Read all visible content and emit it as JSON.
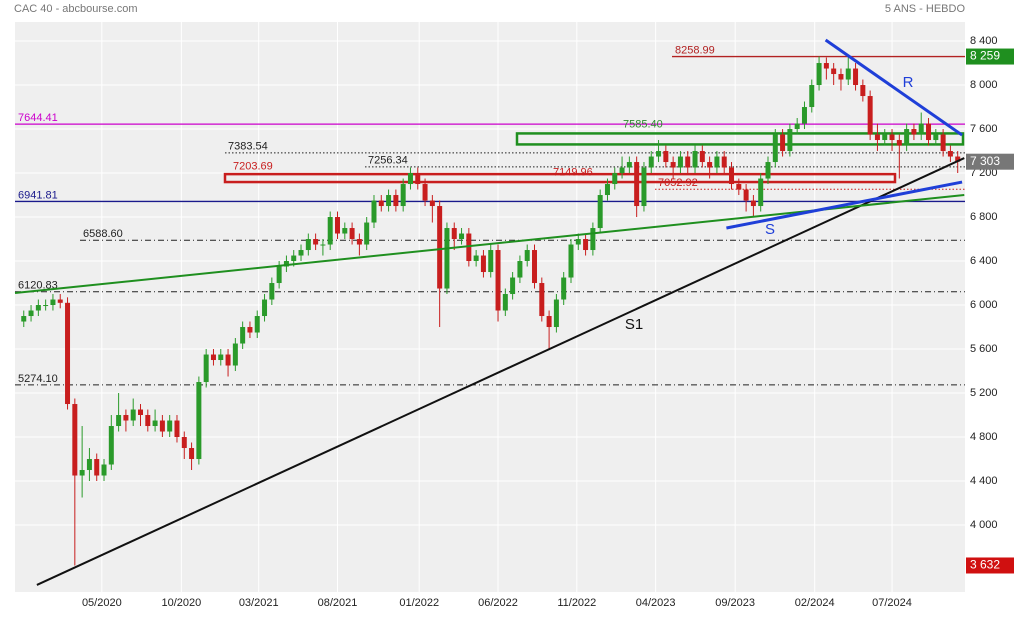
{
  "chart_data": {
    "type": "candlestick",
    "title": "CAC 40 - abcbourse.com",
    "subtitle": "5 ANS - HEBDO",
    "up_color": "#2a9a2a",
    "down_color": "#c81e1e",
    "open": [
      5850,
      5900,
      5950,
      6000,
      6000,
      6050,
      6020,
      5100,
      4450,
      4500,
      4600,
      4450,
      4550,
      4900,
      5000,
      4950,
      5050,
      5000,
      4900,
      4950,
      4850,
      4950,
      4800,
      4700,
      4600,
      5300,
      5550,
      5500,
      5550,
      5450,
      5650,
      5800,
      5750,
      5900,
      6050,
      6200,
      6350,
      6400,
      6450,
      6500,
      6600,
      6550,
      6550,
      6800,
      6650,
      6700,
      6600,
      6550,
      6750,
      6950,
      6900,
      7000,
      6900,
      7100,
      7200,
      7100,
      6950,
      6900,
      6150,
      6700,
      6600,
      6650,
      6400,
      6450,
      6300,
      6500,
      5950,
      6100,
      6250,
      6400,
      6500,
      6200,
      5900,
      5800,
      6050,
      6250,
      6550,
      6600,
      6500,
      6700,
      7000,
      7100,
      7200,
      7250,
      7300,
      6900,
      7250,
      7350,
      7400,
      7300,
      7250,
      7350,
      7250,
      7400,
      7300,
      7250,
      7350,
      7250,
      7100,
      7050,
      6950,
      6900,
      7150,
      7300,
      7550,
      7400,
      7600,
      7650,
      7800,
      8000,
      8200,
      8150,
      8100,
      8050,
      8150,
      8000,
      7900,
      7550,
      7500,
      7550,
      7500,
      7450,
      7600,
      7550,
      7650,
      7500,
      7550,
      7400,
      7350
    ],
    "high": [
      5950,
      6000,
      6050,
      6050,
      6100,
      6100,
      6070,
      5150,
      4900,
      4700,
      4650,
      4600,
      5000,
      5200,
      5050,
      5150,
      5100,
      5050,
      5050,
      5000,
      5000,
      5000,
      4850,
      4750,
      5350,
      5600,
      5600,
      5600,
      5600,
      5700,
      5850,
      5850,
      5950,
      6100,
      6250,
      6400,
      6450,
      6500,
      6550,
      6650,
      6650,
      6600,
      6850,
      6850,
      6750,
      6750,
      6650,
      6800,
      7000,
      7000,
      7050,
      7050,
      7150,
      7250,
      7250,
      7150,
      7000,
      6950,
      6750,
      6750,
      6700,
      6700,
      6500,
      6500,
      6550,
      6550,
      6150,
      6300,
      6450,
      6550,
      6550,
      6250,
      5950,
      6100,
      6300,
      6600,
      6650,
      6650,
      6750,
      7050,
      7150,
      7250,
      7350,
      7350,
      7350,
      7300,
      7400,
      7500,
      7450,
      7350,
      7400,
      7400,
      7450,
      7450,
      7350,
      7400,
      7400,
      7300,
      7150,
      7100,
      7000,
      7200,
      7350,
      7600,
      7600,
      7650,
      7700,
      7850,
      8050,
      8259,
      8250,
      8200,
      8150,
      8250,
      8200,
      8050,
      7950,
      7650,
      7600,
      7600,
      7550,
      7650,
      7650,
      7750,
      7700,
      7600,
      7600,
      7450,
      7400
    ],
    "low": [
      5800,
      5850,
      5900,
      5950,
      5950,
      5970,
      5050,
      3632,
      4250,
      4400,
      4400,
      4400,
      4500,
      4850,
      4850,
      4900,
      4900,
      4850,
      4850,
      4800,
      4800,
      4750,
      4600,
      4500,
      4550,
      5250,
      5450,
      5450,
      5350,
      5400,
      5600,
      5700,
      5700,
      5850,
      6000,
      6150,
      6300,
      6350,
      6400,
      6450,
      6500,
      6450,
      6500,
      6600,
      6600,
      6550,
      6450,
      6500,
      6700,
      6850,
      6850,
      6850,
      6850,
      7050,
      7050,
      6900,
      6750,
      5800,
      6100,
      6500,
      6550,
      6350,
      6350,
      6250,
      6250,
      5850,
      5900,
      6050,
      6200,
      6350,
      6150,
      5850,
      5600,
      5750,
      6000,
      6200,
      6500,
      6450,
      6450,
      6650,
      6950,
      7050,
      7150,
      7200,
      6800,
      6850,
      7200,
      7300,
      7250,
      7150,
      7200,
      7200,
      7200,
      7250,
      7150,
      7200,
      7200,
      7050,
      7000,
      6850,
      6800,
      6850,
      7100,
      7250,
      7350,
      7350,
      7550,
      7600,
      7750,
      7950,
      8050,
      8000,
      7950,
      8000,
      7950,
      7850,
      7500,
      7400,
      7450,
      7400,
      7150,
      7400,
      7500,
      7500,
      7450,
      7450,
      7350,
      7300,
      7200
    ],
    "close": [
      5900,
      5950,
      6000,
      6000,
      6050,
      6020,
      5100,
      4450,
      4500,
      4600,
      4450,
      4550,
      4900,
      5000,
      4950,
      5050,
      5000,
      4900,
      4950,
      4850,
      4950,
      4800,
      4700,
      4600,
      5300,
      5550,
      5500,
      5550,
      5450,
      5650,
      5800,
      5750,
      5900,
      6050,
      6200,
      6350,
      6400,
      6450,
      6500,
      6600,
      6550,
      6550,
      6800,
      6650,
      6700,
      6600,
      6550,
      6750,
      6950,
      6900,
      7000,
      6900,
      7100,
      7200,
      7100,
      6950,
      6900,
      6150,
      6700,
      6600,
      6650,
      6400,
      6450,
      6300,
      6500,
      5950,
      6100,
      6250,
      6400,
      6500,
      6200,
      5900,
      5800,
      6050,
      6250,
      6550,
      6600,
      6500,
      6700,
      7000,
      7100,
      7200,
      7250,
      7300,
      6900,
      7250,
      7350,
      7400,
      7300,
      7250,
      7350,
      7250,
      7400,
      7300,
      7250,
      7350,
      7250,
      7100,
      7050,
      6950,
      6900,
      7150,
      7300,
      7550,
      7400,
      7600,
      7650,
      7800,
      8000,
      8200,
      8150,
      8100,
      8050,
      8150,
      8000,
      7900,
      7550,
      7500,
      7550,
      7500,
      7450,
      7600,
      7550,
      7650,
      7500,
      7550,
      7400,
      7350,
      7303
    ],
    "xlim": [
      -1.2,
      129
    ],
    "xticks": [
      {
        "value": 10.7,
        "label": "05/2020"
      },
      {
        "value": 21.6,
        "label": "10/2020"
      },
      {
        "value": 32.2,
        "label": "03/2021"
      },
      {
        "value": 43,
        "label": "08/2021"
      },
      {
        "value": 54.2,
        "label": "01/2022"
      },
      {
        "value": 65,
        "label": "06/2022"
      },
      {
        "value": 75.8,
        "label": "11/2022"
      },
      {
        "value": 86.6,
        "label": "04/2023"
      },
      {
        "value": 97.5,
        "label": "09/2023"
      },
      {
        "value": 108.4,
        "label": "02/2024"
      },
      {
        "value": 119,
        "label": "07/2024"
      }
    ],
    "ylim": [
      3391,
      8573
    ],
    "yticks": [
      {
        "value": 4000,
        "label": "4 000"
      },
      {
        "value": 4400,
        "label": "4 400"
      },
      {
        "value": 4800,
        "label": "4 800"
      },
      {
        "value": 5200,
        "label": "5 200"
      },
      {
        "value": 5600,
        "label": "5 600"
      },
      {
        "value": 6000,
        "label": "6 000"
      },
      {
        "value": 6400,
        "label": "6 400"
      },
      {
        "value": 6800,
        "label": "6 800"
      },
      {
        "value": 7200,
        "label": "7 200"
      },
      {
        "value": 7600,
        "label": "7 600"
      },
      {
        "value": 8000,
        "label": "8 000"
      },
      {
        "value": 8400,
        "label": "8 400"
      }
    ],
    "grid": true,
    "levels": [
      {
        "value": 8258.99,
        "label": "8258.99",
        "color": "#b22222",
        "style": "solid"
      },
      {
        "value": 7644.41,
        "label": "7644.41",
        "color": "#cc00cc",
        "style": "solid"
      },
      {
        "value": 7585.4,
        "label": "7585.40",
        "color": "#2e8b2e",
        "style": "none"
      },
      {
        "value": 7383.54,
        "label": "7383.54",
        "color": "#222222",
        "style": "dotted"
      },
      {
        "value": 7256.34,
        "label": "7256.34",
        "color": "#222222",
        "style": "dotted"
      },
      {
        "value": 7203.69,
        "label": "7203.69",
        "color": "#c81e1e",
        "style": "none"
      },
      {
        "value": 7149.96,
        "label": "7149.96",
        "color": "#c81e1e",
        "style": "none"
      },
      {
        "value": 7052.92,
        "label": "7052.92",
        "color": "#c81e1e",
        "style": "dotted"
      },
      {
        "value": 6941.81,
        "label": "6941.81",
        "color": "#1a1a8c",
        "style": "solid"
      },
      {
        "value": 6588.6,
        "label": "6588.60",
        "color": "#222222",
        "style": "dashdot"
      },
      {
        "value": 6120.83,
        "label": "6120.83",
        "color": "#222222",
        "style": "dashdot"
      },
      {
        "value": 5274.1,
        "label": "5274.10",
        "color": "#222222",
        "style": "dashdot"
      }
    ],
    "zones": [
      {
        "low": 7460,
        "high": 7560,
        "color": "#1f8f1f"
      },
      {
        "low": 7118,
        "high": 7190,
        "color": "#c81e1e"
      }
    ],
    "trendlines": [
      {
        "label": "S1",
        "color": "#111111",
        "x": [
          1.8,
          128.9
        ],
        "y": [
          3455,
          7336
        ]
      },
      {
        "color": "#1f8f1f",
        "x": [
          -1.2,
          128.9
        ],
        "y": [
          6109,
          7000
        ]
      },
      {
        "label": "S",
        "color": "#1f3fd8",
        "x": [
          96.3,
          128.6
        ],
        "y": [
          6700,
          7118
        ]
      },
      {
        "label": "R",
        "color": "#1f3fd8",
        "x": [
          109.9,
          128.6
        ],
        "y": [
          8409,
          7545
        ]
      }
    ],
    "markers": [
      {
        "value": 8259,
        "label": "8 259",
        "color": "#1f8f1f"
      },
      {
        "value": 7303,
        "label": "7 303",
        "color": "#777777"
      },
      {
        "value": 3632,
        "label": "3 632",
        "color": "#d01010"
      }
    ]
  }
}
